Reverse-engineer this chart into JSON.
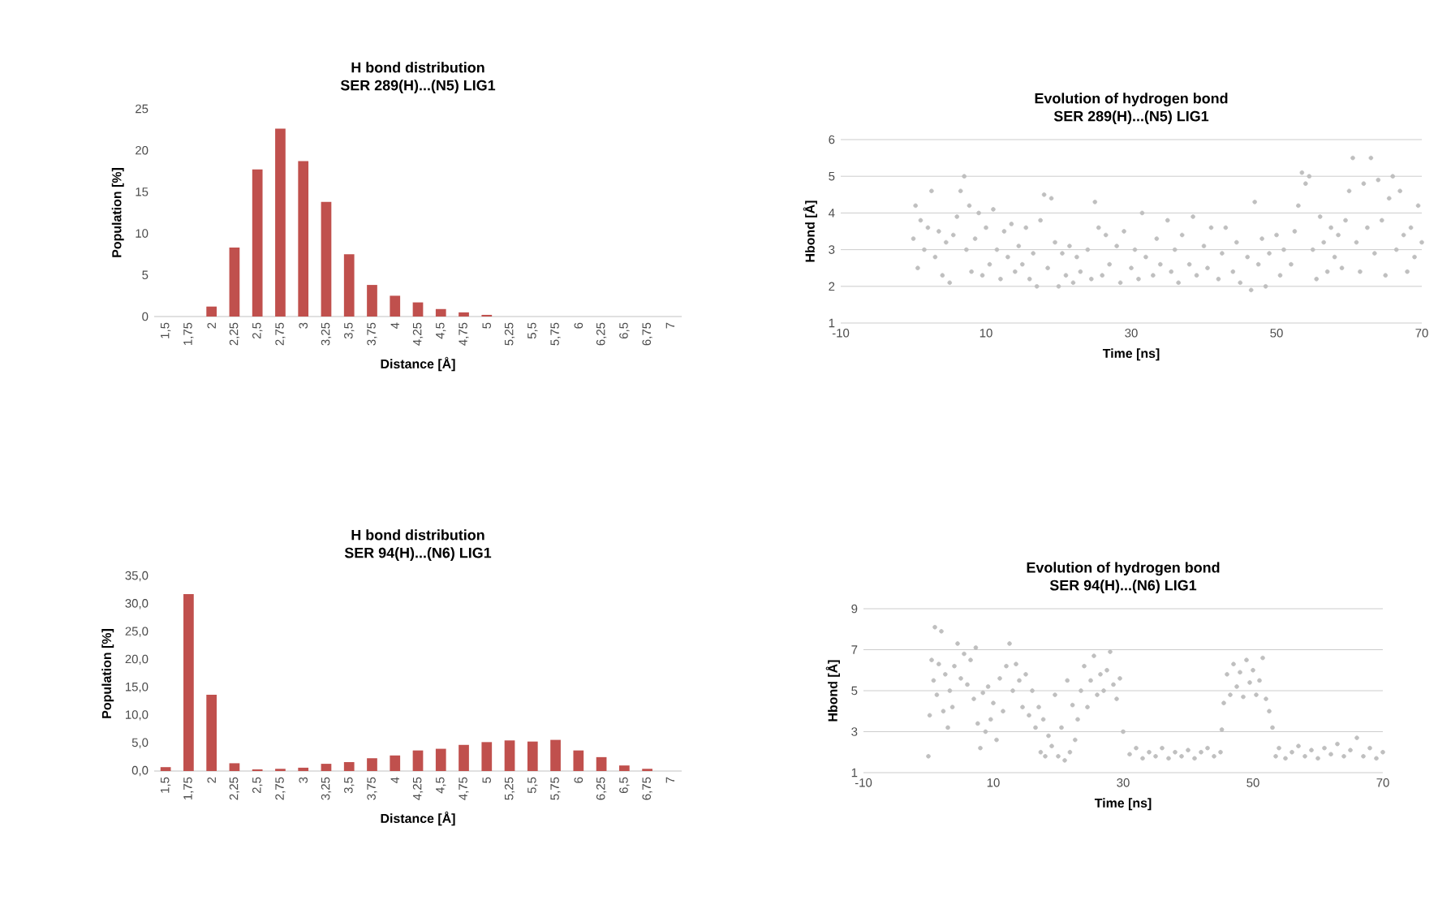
{
  "chart_data": [
    {
      "type": "bar",
      "title": "H bond distribution",
      "subtitle": "SER 289(H)...(N5) LIG1",
      "xlabel": "Distance [Å]",
      "ylabel": "Population [%]",
      "categories": [
        "1,5",
        "1,75",
        "2",
        "2,25",
        "2,5",
        "2,75",
        "3",
        "3,25",
        "3,5",
        "3,75",
        "4",
        "4,25",
        "4,5",
        "4,75",
        "5",
        "5,25",
        "5,5",
        "5,75",
        "6",
        "6,25",
        "6,5",
        "6,75",
        "7"
      ],
      "series": [
        {
          "color": "#c0504d",
          "values": [
            0,
            0,
            1.2,
            8.3,
            17.7,
            22.6,
            18.7,
            13.8,
            7.5,
            3.8,
            2.5,
            1.7,
            0.9,
            0.5,
            0.2,
            0,
            0,
            0,
            0,
            0,
            0,
            0,
            0
          ]
        }
      ],
      "ylim": [
        0,
        25
      ],
      "yticks": [
        0,
        5,
        10,
        15,
        20,
        25
      ]
    },
    {
      "type": "scatter",
      "title": "Evolution of hydrogen bond",
      "subtitle": "SER 289(H)...(N5) LIG1",
      "xlabel": "Time [ns]",
      "ylabel": "Hbond [Å]",
      "grid": "y",
      "x": [
        0,
        0.3,
        0.6,
        1,
        1.5,
        2,
        2.5,
        3,
        3.5,
        4,
        4.5,
        5,
        5.5,
        6,
        6.5,
        7,
        7.3,
        7.7,
        8,
        8.5,
        9,
        9.5,
        10,
        10.5,
        11,
        11.5,
        12,
        12.5,
        13,
        13.5,
        14,
        14.5,
        15,
        15.5,
        16,
        16.5,
        17,
        17.5,
        18,
        18.5,
        19,
        19.5,
        20,
        20.5,
        21,
        21.5,
        22,
        22.5,
        23,
        24,
        24.5,
        25,
        25.5,
        26,
        26.5,
        27,
        28,
        28.5,
        29,
        30,
        30.5,
        31,
        31.5,
        32,
        33,
        33.5,
        34,
        35,
        35.5,
        36,
        36.5,
        37,
        38,
        38.5,
        39,
        40,
        40.5,
        41,
        42,
        42.5,
        43,
        44,
        44.5,
        45,
        46,
        46.5,
        47,
        47.5,
        48,
        48.5,
        49,
        50,
        50.5,
        51,
        52,
        52.5,
        53,
        53.5,
        54,
        54.5,
        55,
        55.5,
        56,
        56.5,
        57,
        57.5,
        58,
        58.5,
        59,
        59.5,
        60,
        60.5,
        61,
        61.5,
        62,
        62.5,
        63,
        63.5,
        64,
        64.5,
        65,
        65.5,
        66,
        66.5,
        67,
        67.5,
        68,
        68.5,
        69,
        69.5,
        70
      ],
      "series": [
        {
          "color": "#bfbfbf",
          "values": [
            3.3,
            4.2,
            2.5,
            3.8,
            3.0,
            3.6,
            4.6,
            2.8,
            3.5,
            2.3,
            3.2,
            2.1,
            3.4,
            3.9,
            4.6,
            5.0,
            3.0,
            4.2,
            2.4,
            3.3,
            4.0,
            2.3,
            3.6,
            2.6,
            4.1,
            3.0,
            2.2,
            3.5,
            2.8,
            3.7,
            2.4,
            3.1,
            2.6,
            3.6,
            2.2,
            2.9,
            2.0,
            3.8,
            4.5,
            2.5,
            4.4,
            3.2,
            2.0,
            2.9,
            2.3,
            3.1,
            2.1,
            2.8,
            2.4,
            3.0,
            2.2,
            4.3,
            3.6,
            2.3,
            3.4,
            2.6,
            3.1,
            2.1,
            3.5,
            2.5,
            3.0,
            2.2,
            4.0,
            2.8,
            2.3,
            3.3,
            2.6,
            3.8,
            2.4,
            3.0,
            2.1,
            3.4,
            2.6,
            3.9,
            2.3,
            3.1,
            2.5,
            3.6,
            2.2,
            2.9,
            3.6,
            2.4,
            3.2,
            2.1,
            2.8,
            1.9,
            4.3,
            2.6,
            3.3,
            2.0,
            2.9,
            3.4,
            2.3,
            3.0,
            2.6,
            3.5,
            4.2,
            5.1,
            4.8,
            5.0,
            3.0,
            2.2,
            3.9,
            3.2,
            2.4,
            3.6,
            2.8,
            3.4,
            2.5,
            3.8,
            4.6,
            5.5,
            3.2,
            2.4,
            4.8,
            3.6,
            5.5,
            2.9,
            4.9,
            3.8,
            2.3,
            4.4,
            5.0,
            3.0,
            4.6,
            3.4,
            2.4,
            3.6,
            2.8,
            4.2,
            3.2
          ]
        }
      ],
      "xlim": [
        -10,
        70
      ],
      "xticks": [
        -10,
        10,
        30,
        50,
        70
      ],
      "ylim": [
        1,
        6
      ],
      "yticks": [
        1,
        2,
        3,
        4,
        5,
        6
      ]
    },
    {
      "type": "bar",
      "title": "H bond distribution",
      "subtitle": "SER 94(H)...(N6) LIG1",
      "xlabel": "Distance [Å]",
      "ylabel": "Population [%]",
      "categories": [
        "1,5",
        "1,75",
        "2",
        "2,25",
        "2,5",
        "2,75",
        "3",
        "3,25",
        "3,5",
        "3,75",
        "4",
        "4,25",
        "4,5",
        "4,75",
        "5",
        "5,25",
        "5,5",
        "5,75",
        "6",
        "6,25",
        "6,5",
        "6,75",
        "7"
      ],
      "series": [
        {
          "color": "#c0504d",
          "values": [
            0.7,
            31.8,
            13.7,
            1.4,
            0.3,
            0.4,
            0.6,
            1.3,
            1.6,
            2.3,
            2.8,
            3.7,
            4.0,
            4.7,
            5.2,
            5.5,
            5.3,
            5.6,
            3.7,
            2.5,
            1.0,
            0.4,
            0
          ]
        }
      ],
      "ylim": [
        0,
        35
      ],
      "yticks": [
        {
          "value": 0,
          "label": "0,0"
        },
        {
          "value": 5,
          "label": "5,0"
        },
        {
          "value": 10,
          "label": "10,0"
        },
        {
          "value": 15,
          "label": "15,0"
        },
        {
          "value": 20,
          "label": "20,0"
        },
        {
          "value": 25,
          "label": "25,0"
        },
        {
          "value": 30,
          "label": "30,0"
        },
        {
          "value": 35,
          "label": "35,0"
        }
      ]
    },
    {
      "type": "scatter",
      "title": "Evolution of hydrogen bond",
      "subtitle": "SER 94(H)...(N6) LIG1",
      "xlabel": "Time [ns]",
      "ylabel": "Hbond [Å]",
      "grid": "y",
      "x": [
        0,
        0.2,
        0.5,
        0.8,
        1,
        1.3,
        1.6,
        2,
        2.3,
        2.6,
        3,
        3.3,
        3.7,
        4,
        4.5,
        5,
        5.5,
        6,
        6.5,
        7,
        7.3,
        7.6,
        8,
        8.4,
        8.8,
        9.2,
        9.6,
        10,
        10.5,
        11,
        11.5,
        12,
        12.5,
        13,
        13.5,
        14,
        14.5,
        15,
        15.5,
        16,
        16.5,
        17,
        17.3,
        17.7,
        18,
        18.5,
        19,
        19.5,
        20,
        20.5,
        21,
        21.4,
        21.8,
        22.2,
        22.6,
        23,
        23.5,
        24,
        24.5,
        25,
        25.5,
        26,
        26.5,
        27,
        27.5,
        28,
        28.5,
        29,
        29.5,
        30,
        31,
        32,
        33,
        34,
        35,
        36,
        37,
        38,
        39,
        40,
        41,
        42,
        43,
        44,
        45,
        45.2,
        45.5,
        46,
        46.5,
        47,
        47.5,
        48,
        48.5,
        49,
        49.5,
        50,
        50.5,
        51,
        51.5,
        52,
        52.5,
        53,
        53.5,
        54,
        55,
        56,
        57,
        58,
        59,
        60,
        61,
        62,
        63,
        64,
        65,
        66,
        67,
        68,
        69,
        70
      ],
      "series": [
        {
          "color": "#bfbfbf",
          "values": [
            1.8,
            3.8,
            6.5,
            5.5,
            8.1,
            4.8,
            6.3,
            7.9,
            4.0,
            5.8,
            3.2,
            5.0,
            4.2,
            6.2,
            7.3,
            5.6,
            6.8,
            5.3,
            6.5,
            4.6,
            7.1,
            3.4,
            2.2,
            4.9,
            3.0,
            5.2,
            3.6,
            4.4,
            2.6,
            5.6,
            4.0,
            6.2,
            7.3,
            5.0,
            6.3,
            5.5,
            4.2,
            5.8,
            3.8,
            5.0,
            3.2,
            4.2,
            2.0,
            3.6,
            1.8,
            2.8,
            2.3,
            4.8,
            1.8,
            3.2,
            1.6,
            5.5,
            2.0,
            4.3,
            2.6,
            3.6,
            5.0,
            6.2,
            4.2,
            5.5,
            6.7,
            4.8,
            5.8,
            5.0,
            6.0,
            6.9,
            5.3,
            4.6,
            5.6,
            3.0,
            1.9,
            2.2,
            1.7,
            2.0,
            1.8,
            2.2,
            1.7,
            2.0,
            1.8,
            2.1,
            1.7,
            2.0,
            2.2,
            1.8,
            2.0,
            3.1,
            4.4,
            5.8,
            4.8,
            6.3,
            5.2,
            5.9,
            4.7,
            6.5,
            5.4,
            6.0,
            4.8,
            5.5,
            6.6,
            4.6,
            4.0,
            3.2,
            1.8,
            2.2,
            1.7,
            2.0,
            2.3,
            1.8,
            2.1,
            1.7,
            2.2,
            1.9,
            2.4,
            1.8,
            2.1,
            2.7,
            1.8,
            2.2,
            1.7,
            2.0
          ]
        }
      ],
      "xlim": [
        -10,
        70
      ],
      "xticks": [
        -10,
        10,
        30,
        50,
        70
      ],
      "ylim": [
        1,
        9
      ],
      "yticks": [
        1,
        3,
        5,
        7,
        9
      ]
    }
  ]
}
